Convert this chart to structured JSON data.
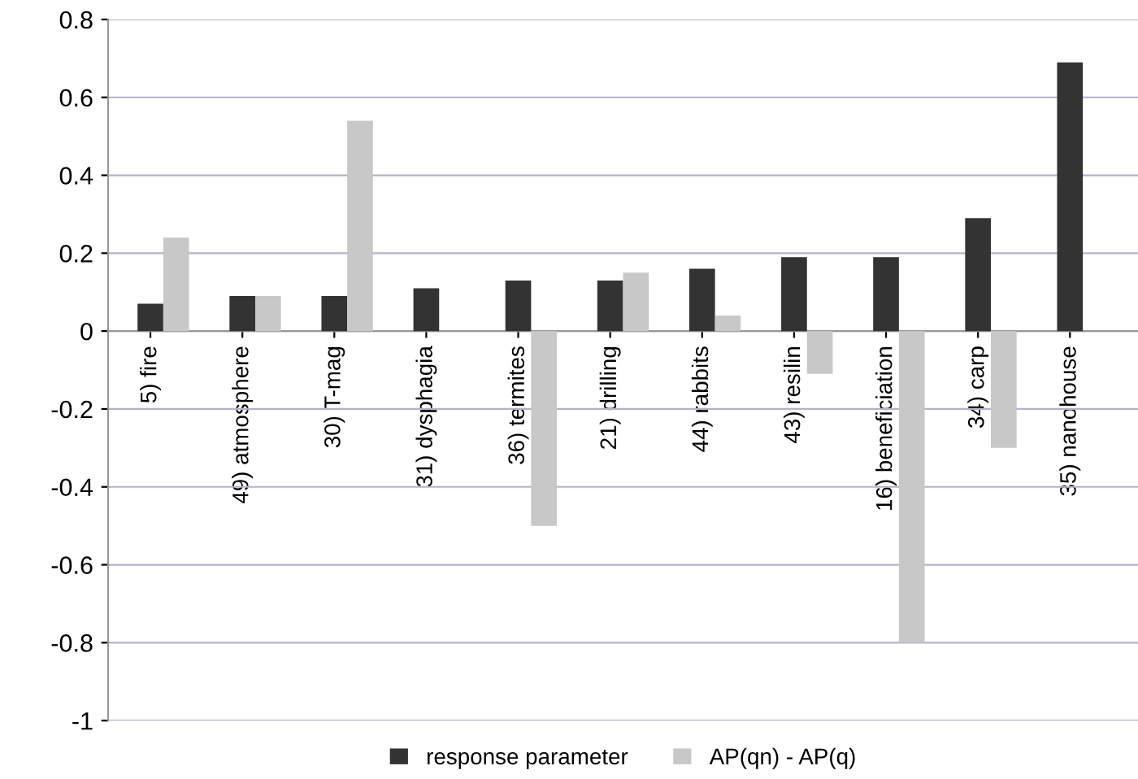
{
  "chart_data": {
    "type": "bar",
    "categories": [
      "5) fire",
      "49) atmosphere",
      "30) T-mag",
      "31) dysphagia",
      "36) termites",
      "21) drilling",
      "44) rabbits",
      "43) resilin",
      "16) beneficiation",
      "34) carp",
      "35) nanohouse"
    ],
    "series": [
      {
        "name": "response parameter",
        "color": "#333333",
        "values": [
          0.07,
          0.09,
          0.09,
          0.11,
          0.13,
          0.13,
          0.16,
          0.19,
          0.19,
          0.29,
          0.69
        ]
      },
      {
        "name": "AP(qn) - AP(q)",
        "color": "#c8c8c8",
        "values": [
          0.24,
          0.09,
          0.54,
          null,
          -0.5,
          0.15,
          0.04,
          -0.11,
          -0.8,
          -0.3,
          null
        ]
      }
    ],
    "ylim": [
      -1,
      0.8
    ],
    "yticks": [
      -1,
      -0.8,
      -0.6,
      -0.4,
      -0.2,
      0,
      0.2,
      0.4,
      0.6,
      0.8
    ],
    "grid": "y",
    "legend": "bottom"
  }
}
